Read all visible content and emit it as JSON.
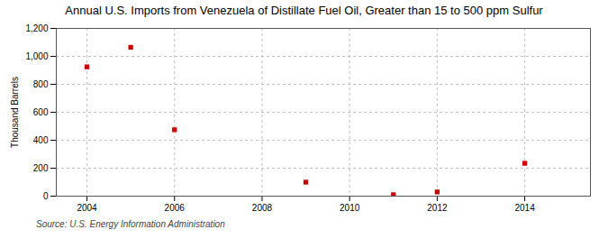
{
  "chart_data": {
    "type": "scatter",
    "title": "Annual U.S. Imports from Venezuela of Distillate Fuel Oil, Greater than 15 to 500 ppm Sulfur",
    "ylabel": "Thousand Barrels",
    "source": "Source: U.S. Energy Information Administration",
    "x": [
      2004,
      2005,
      2006,
      2009,
      2011,
      2012,
      2014
    ],
    "values": [
      925,
      1065,
      475,
      100,
      10,
      30,
      235
    ],
    "color": "#cc0000",
    "marker": "square",
    "xlim": [
      2003.3,
      2015.5
    ],
    "xticks": [
      2004,
      2006,
      2008,
      2010,
      2012,
      2014
    ],
    "ylim": [
      0,
      1200
    ],
    "yticks": [
      0,
      200,
      400,
      600,
      800,
      {
        "value": 1000,
        "label": "1,000"
      },
      {
        "value": 1200,
        "label": "1,200"
      }
    ],
    "grid": true
  }
}
